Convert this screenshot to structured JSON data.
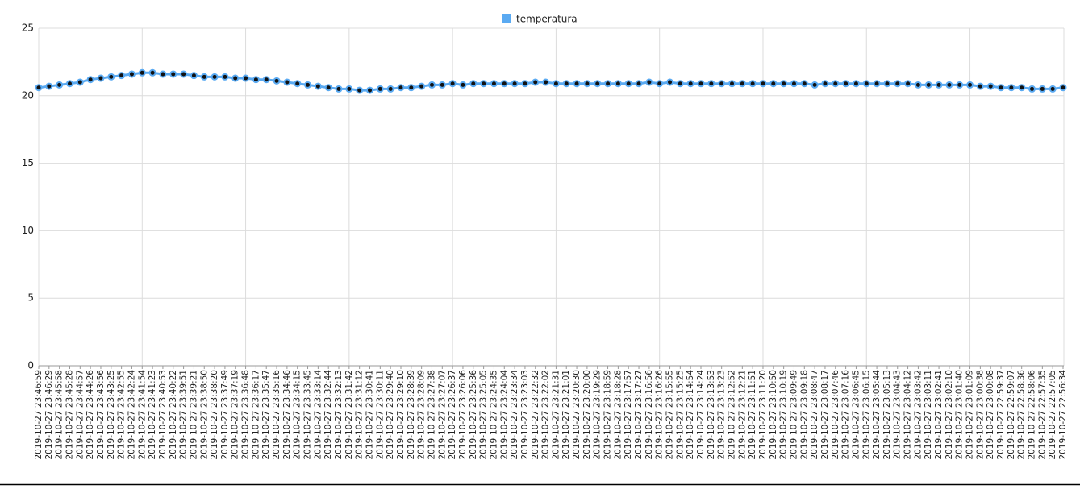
{
  "chart_data": {
    "type": "line",
    "categories": [
      "2019-10-27 23:46:59",
      "2019-10-27 23:46:29",
      "2019-10-27 23:45:58",
      "2019-10-27 23:45:28",
      "2019-10-27 23:44:57",
      "2019-10-27 23:44:26",
      "2019-10-27 23:43:56",
      "2019-10-27 23:43:25",
      "2019-10-27 23:42:55",
      "2019-10-27 23:42:24",
      "2019-10-27 23:41:54",
      "2019-10-27 23:41:23",
      "2019-10-27 23:40:53",
      "2019-10-27 23:40:22",
      "2019-10-27 23:39:51",
      "2019-10-27 23:39:21",
      "2019-10-27 23:38:50",
      "2019-10-27 23:38:20",
      "2019-10-27 23:37:49",
      "2019-10-27 23:37:19",
      "2019-10-27 23:36:48",
      "2019-10-27 23:36:17",
      "2019-10-27 23:35:47",
      "2019-10-27 23:35:16",
      "2019-10-27 23:34:46",
      "2019-10-27 23:34:15",
      "2019-10-27 23:33:45",
      "2019-10-27 23:33:14",
      "2019-10-27 23:32:44",
      "2019-10-27 23:32:13",
      "2019-10-27 23:31:42",
      "2019-10-27 23:31:12",
      "2019-10-27 23:30:41",
      "2019-10-27 23:30:11",
      "2019-10-27 23:29:40",
      "2019-10-27 23:29:10",
      "2019-10-27 23:28:39",
      "2019-10-27 23:28:09",
      "2019-10-27 23:27:38",
      "2019-10-27 23:27:07",
      "2019-10-27 23:26:37",
      "2019-10-27 23:26:06",
      "2019-10-27 23:25:36",
      "2019-10-27 23:25:05",
      "2019-10-27 23:24:35",
      "2019-10-27 23:24:04",
      "2019-10-27 23:23:34",
      "2019-10-27 23:23:03",
      "2019-10-27 23:22:32",
      "2019-10-27 23:22:02",
      "2019-10-27 23:21:31",
      "2019-10-27 23:21:01",
      "2019-10-27 23:20:30",
      "2019-10-27 23:20:00",
      "2019-10-27 23:19:29",
      "2019-10-27 23:18:59",
      "2019-10-27 23:18:28",
      "2019-10-27 23:17:57",
      "2019-10-27 23:17:27",
      "2019-10-27 23:16:56",
      "2019-10-27 23:16:26",
      "2019-10-27 23:15:55",
      "2019-10-27 23:15:25",
      "2019-10-27 23:14:54",
      "2019-10-27 23:14:24",
      "2019-10-27 23:13:53",
      "2019-10-27 23:13:23",
      "2019-10-27 23:12:52",
      "2019-10-27 23:12:21",
      "2019-10-27 23:11:51",
      "2019-10-27 23:11:20",
      "2019-10-27 23:10:50",
      "2019-10-27 23:10:19",
      "2019-10-27 23:09:49",
      "2019-10-27 23:09:18",
      "2019-10-27 23:08:47",
      "2019-10-27 23:08:17",
      "2019-10-27 23:07:46",
      "2019-10-27 23:07:16",
      "2019-10-27 23:06:45",
      "2019-10-27 23:06:15",
      "2019-10-27 23:05:44",
      "2019-10-27 23:05:13",
      "2019-10-27 23:04:43",
      "2019-10-27 23:04:12",
      "2019-10-27 23:03:42",
      "2019-10-27 23:03:11",
      "2019-10-27 23:02:41",
      "2019-10-27 23:02:10",
      "2019-10-27 23:01:40",
      "2019-10-27 23:01:09",
      "2019-10-27 23:00:38",
      "2019-10-27 23:00:08",
      "2019-10-27 22:59:37",
      "2019-10-27 22:59:07",
      "2019-10-27 22:58:36",
      "2019-10-27 22:58:06",
      "2019-10-27 22:57:35",
      "2019-10-27 22:57:05",
      "2019-10-27 22:56:34"
    ],
    "series": [
      {
        "name": "temperatura",
        "color": "#5aaaf2",
        "values": [
          20.6,
          20.7,
          20.8,
          20.9,
          21.0,
          21.2,
          21.3,
          21.4,
          21.5,
          21.6,
          21.7,
          21.7,
          21.6,
          21.6,
          21.6,
          21.5,
          21.4,
          21.4,
          21.4,
          21.3,
          21.3,
          21.2,
          21.2,
          21.1,
          21.0,
          20.9,
          20.8,
          20.7,
          20.6,
          20.5,
          20.5,
          20.4,
          20.4,
          20.5,
          20.5,
          20.6,
          20.6,
          20.7,
          20.8,
          20.8,
          20.9,
          20.8,
          20.9,
          20.9,
          20.9,
          20.9,
          20.9,
          20.9,
          21.0,
          21.0,
          20.9,
          20.9,
          20.9,
          20.9,
          20.9,
          20.9,
          20.9,
          20.9,
          20.9,
          21.0,
          20.9,
          21.0,
          20.9,
          20.9,
          20.9,
          20.9,
          20.9,
          20.9,
          20.9,
          20.9,
          20.9,
          20.9,
          20.9,
          20.9,
          20.9,
          20.8,
          20.9,
          20.9,
          20.9,
          20.9,
          20.9,
          20.9,
          20.9,
          20.9,
          20.9,
          20.8,
          20.8,
          20.8,
          20.8,
          20.8,
          20.8,
          20.7,
          20.7,
          20.6,
          20.6,
          20.6,
          20.5,
          20.5,
          20.5,
          20.6
        ]
      }
    ],
    "ylim": [
      0,
      25
    ],
    "yticks": [
      0,
      5,
      10,
      15,
      20,
      25
    ],
    "grid": true
  }
}
